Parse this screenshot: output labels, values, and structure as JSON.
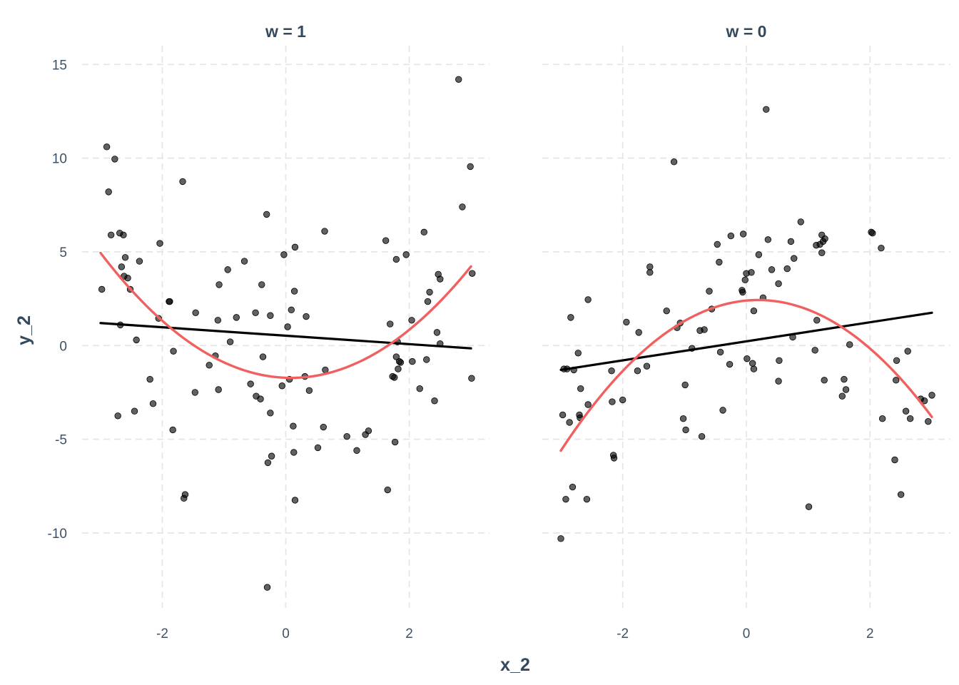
{
  "chart_data": {
    "type": "scatter",
    "xlabel": "x_2",
    "ylabel": "y_2",
    "xlim": [
      -3.3,
      3.3
    ],
    "ylim": [
      -14,
      16
    ],
    "x_ticks": [
      -2,
      0,
      2
    ],
    "y_ticks": [
      -10,
      -5,
      0,
      5,
      10,
      15
    ],
    "grid": true,
    "colors": {
      "linear_fit": "#000000",
      "quadratic_fit": "#f06060",
      "points": "#000000"
    },
    "panels": [
      {
        "title": "w = 1",
        "linear_fit": {
          "x": [
            -3,
            3
          ],
          "y": [
            1.2,
            -0.15
          ]
        },
        "quadratic_fit": {
          "a": 0.7,
          "b": -0.12,
          "c": -1.72,
          "x_range": [
            -3,
            3
          ]
        },
        "points": [
          [
            -2.98,
            3.0
          ],
          [
            -2.9,
            10.6
          ],
          [
            -2.87,
            8.2
          ],
          [
            -2.83,
            5.9
          ],
          [
            -2.77,
            9.95
          ],
          [
            -2.72,
            -3.75
          ],
          [
            -2.69,
            6.0
          ],
          [
            -2.68,
            1.1
          ],
          [
            -2.66,
            4.2
          ],
          [
            -2.63,
            5.9
          ],
          [
            -2.62,
            3.7
          ],
          [
            -2.6,
            4.7
          ],
          [
            -2.56,
            3.6
          ],
          [
            -2.52,
            3.0
          ],
          [
            -2.45,
            -3.5
          ],
          [
            -2.42,
            0.3
          ],
          [
            -2.37,
            4.5
          ],
          [
            -2.2,
            -1.8
          ],
          [
            -2.15,
            -3.1
          ],
          [
            -2.06,
            1.45
          ],
          [
            -2.04,
            5.45
          ],
          [
            -1.89,
            2.35
          ],
          [
            -1.88,
            2.35
          ],
          [
            -1.83,
            -4.5
          ],
          [
            -1.82,
            -0.3
          ],
          [
            -1.67,
            8.75
          ],
          [
            -1.65,
            -8.15
          ],
          [
            -1.63,
            -7.95
          ],
          [
            -1.47,
            -2.5
          ],
          [
            -1.46,
            1.75
          ],
          [
            -1.24,
            -1.05
          ],
          [
            -1.14,
            -0.55
          ],
          [
            -1.1,
            1.35
          ],
          [
            -1.09,
            -2.35
          ],
          [
            -1.08,
            3.25
          ],
          [
            -0.94,
            4.05
          ],
          [
            -0.9,
            0.2
          ],
          [
            -0.8,
            1.5
          ],
          [
            -0.67,
            4.5
          ],
          [
            -0.57,
            -2.05
          ],
          [
            -0.49,
            1.75
          ],
          [
            -0.48,
            -2.7
          ],
          [
            -0.41,
            -2.85
          ],
          [
            -0.39,
            3.25
          ],
          [
            -0.37,
            -0.6
          ],
          [
            -0.31,
            7.0
          ],
          [
            -0.29,
            -6.25
          ],
          [
            -0.25,
            -3.6
          ],
          [
            -0.25,
            1.6
          ],
          [
            -0.23,
            -5.9
          ],
          [
            -0.3,
            -12.9
          ],
          [
            -0.06,
            -2.15
          ],
          [
            -0.03,
            4.85
          ],
          [
            0.03,
            1.0
          ],
          [
            0.06,
            -1.8
          ],
          [
            0.09,
            1.9
          ],
          [
            0.12,
            -4.3
          ],
          [
            0.13,
            -5.7
          ],
          [
            0.14,
            2.9
          ],
          [
            0.15,
            5.25
          ],
          [
            0.15,
            -8.25
          ],
          [
            0.31,
            -1.65
          ],
          [
            0.33,
            1.55
          ],
          [
            0.38,
            -2.4
          ],
          [
            0.52,
            -5.45
          ],
          [
            0.61,
            -4.35
          ],
          [
            0.64,
            -1.3
          ],
          [
            0.63,
            6.1
          ],
          [
            0.99,
            -4.85
          ],
          [
            1.15,
            -5.6
          ],
          [
            1.29,
            -4.75
          ],
          [
            1.34,
            -4.55
          ],
          [
            1.62,
            5.6
          ],
          [
            1.65,
            -7.7
          ],
          [
            1.69,
            1.15
          ],
          [
            1.73,
            -1.65
          ],
          [
            1.76,
            -1.7
          ],
          [
            1.77,
            -5.15
          ],
          [
            1.79,
            -0.6
          ],
          [
            1.79,
            4.6
          ],
          [
            1.81,
            0.2
          ],
          [
            1.82,
            -1.25
          ],
          [
            1.84,
            -0.85
          ],
          [
            1.86,
            -0.9
          ],
          [
            1.95,
            4.85
          ],
          [
            2.04,
            1.35
          ],
          [
            2.05,
            -0.85
          ],
          [
            2.17,
            -2.3
          ],
          [
            2.24,
            6.05
          ],
          [
            2.28,
            -0.75
          ],
          [
            2.3,
            2.35
          ],
          [
            2.33,
            2.85
          ],
          [
            2.41,
            -2.95
          ],
          [
            2.45,
            0.7
          ],
          [
            2.47,
            3.8
          ],
          [
            2.5,
            3.55
          ],
          [
            2.5,
            0.1
          ],
          [
            2.8,
            14.2
          ],
          [
            2.86,
            7.4
          ],
          [
            2.99,
            9.55
          ],
          [
            3.02,
            3.85
          ],
          [
            3.01,
            -1.75
          ]
        ]
      },
      {
        "title": "w = 0",
        "linear_fit": {
          "x": [
            -3,
            3
          ],
          "y": [
            -1.3,
            1.75
          ]
        },
        "quadratic_fit": {
          "a": -0.79,
          "b": 0.3,
          "c": 2.4,
          "x_range": [
            -3,
            3
          ]
        },
        "points": [
          [
            -3.0,
            -10.3
          ],
          [
            -2.97,
            -3.7
          ],
          [
            -2.95,
            -1.25
          ],
          [
            -2.92,
            -8.2
          ],
          [
            -2.9,
            -1.25
          ],
          [
            -2.86,
            -4.1
          ],
          [
            -2.84,
            1.5
          ],
          [
            -2.81,
            -7.55
          ],
          [
            -2.79,
            -1.3
          ],
          [
            -2.72,
            -0.4
          ],
          [
            -2.7,
            -3.7
          ],
          [
            -2.69,
            -3.85
          ],
          [
            -2.68,
            -2.3
          ],
          [
            -2.58,
            -8.2
          ],
          [
            -2.56,
            -3.15
          ],
          [
            -2.56,
            2.45
          ],
          [
            -2.18,
            -1.35
          ],
          [
            -2.17,
            -3.0
          ],
          [
            -2.15,
            -5.85
          ],
          [
            -2.14,
            -6.0
          ],
          [
            -2.0,
            -2.9
          ],
          [
            -1.94,
            1.25
          ],
          [
            -1.76,
            -1.35
          ],
          [
            -1.74,
            0.7
          ],
          [
            -1.61,
            -1.1
          ],
          [
            -1.56,
            4.2
          ],
          [
            -1.56,
            3.9
          ],
          [
            -1.29,
            1.85
          ],
          [
            -1.17,
            9.8
          ],
          [
            -1.12,
            0.95
          ],
          [
            -1.07,
            1.2
          ],
          [
            -1.02,
            -3.9
          ],
          [
            -0.99,
            -2.1
          ],
          [
            -0.98,
            -4.5
          ],
          [
            -0.88,
            -0.15
          ],
          [
            -0.75,
            0.8
          ],
          [
            -0.72,
            -4.85
          ],
          [
            -0.68,
            0.85
          ],
          [
            -0.6,
            2.9
          ],
          [
            -0.56,
            1.95
          ],
          [
            -0.47,
            5.4
          ],
          [
            -0.44,
            4.45
          ],
          [
            -0.42,
            -0.35
          ],
          [
            -0.38,
            -3.45
          ],
          [
            -0.27,
            -1.0
          ],
          [
            -0.25,
            5.85
          ],
          [
            -0.07,
            2.95
          ],
          [
            -0.06,
            2.85
          ],
          [
            -0.05,
            5.95
          ],
          [
            -0.02,
            3.5
          ],
          [
            0.0,
            3.85
          ],
          [
            0.01,
            -0.7
          ],
          [
            0.08,
            3.9
          ],
          [
            0.1,
            -0.95
          ],
          [
            0.12,
            -1.25
          ],
          [
            0.12,
            1.85
          ],
          [
            0.2,
            4.85
          ],
          [
            0.27,
            2.55
          ],
          [
            0.32,
            12.6
          ],
          [
            0.35,
            5.65
          ],
          [
            0.41,
            4.05
          ],
          [
            0.52,
            3.3
          ],
          [
            0.53,
            -0.8
          ],
          [
            0.52,
            -1.9
          ],
          [
            0.66,
            4.1
          ],
          [
            0.72,
            5.55
          ],
          [
            0.75,
            0.45
          ],
          [
            0.77,
            4.65
          ],
          [
            0.88,
            6.6
          ],
          [
            1.01,
            -8.6
          ],
          [
            1.11,
            -0.25
          ],
          [
            1.13,
            5.35
          ],
          [
            1.14,
            1.35
          ],
          [
            1.19,
            5.4
          ],
          [
            1.22,
            4.95
          ],
          [
            1.22,
            5.9
          ],
          [
            1.24,
            5.55
          ],
          [
            1.26,
            -1.85
          ],
          [
            1.27,
            5.7
          ],
          [
            1.55,
            -2.7
          ],
          [
            1.58,
            -1.8
          ],
          [
            1.61,
            -2.35
          ],
          [
            1.67,
            0.05
          ],
          [
            2.02,
            6.05
          ],
          [
            2.04,
            6.0
          ],
          [
            2.18,
            5.2
          ],
          [
            2.2,
            -3.9
          ],
          [
            2.4,
            -6.1
          ],
          [
            2.42,
            -1.85
          ],
          [
            2.43,
            -0.8
          ],
          [
            2.5,
            -7.95
          ],
          [
            2.58,
            -3.5
          ],
          [
            2.61,
            -0.3
          ],
          [
            2.65,
            -3.9
          ],
          [
            2.82,
            -2.85
          ],
          [
            2.88,
            -2.95
          ],
          [
            2.94,
            -4.05
          ],
          [
            3.0,
            -2.65
          ]
        ]
      }
    ]
  }
}
